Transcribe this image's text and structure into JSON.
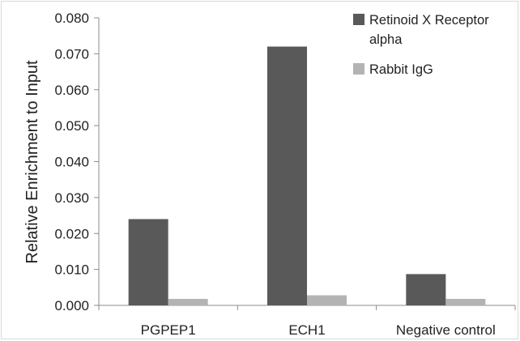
{
  "chart_data": {
    "type": "bar",
    "title": "",
    "xlabel": "",
    "ylabel": "Relative Enrichment to Input",
    "ylim": [
      0,
      0.08
    ],
    "yticks": [
      "0.000",
      "0.010",
      "0.020",
      "0.030",
      "0.040",
      "0.050",
      "0.060",
      "0.070",
      "0.080"
    ],
    "categories": [
      "PGPEP1",
      "ECH1",
      "Negative control"
    ],
    "series": [
      {
        "name": "Retinoid X Receptor alpha",
        "values": [
          0.024,
          0.072,
          0.0087
        ],
        "color": "#595959"
      },
      {
        "name": "Rabbit IgG",
        "values": [
          0.0018,
          0.0028,
          0.0018
        ],
        "color": "#b3b3b3"
      }
    ],
    "legend": {
      "position": "top-right",
      "line1": "Retinoid X Receptor",
      "line2": "alpha",
      "line3": "Rabbit IgG"
    },
    "grid": false
  }
}
